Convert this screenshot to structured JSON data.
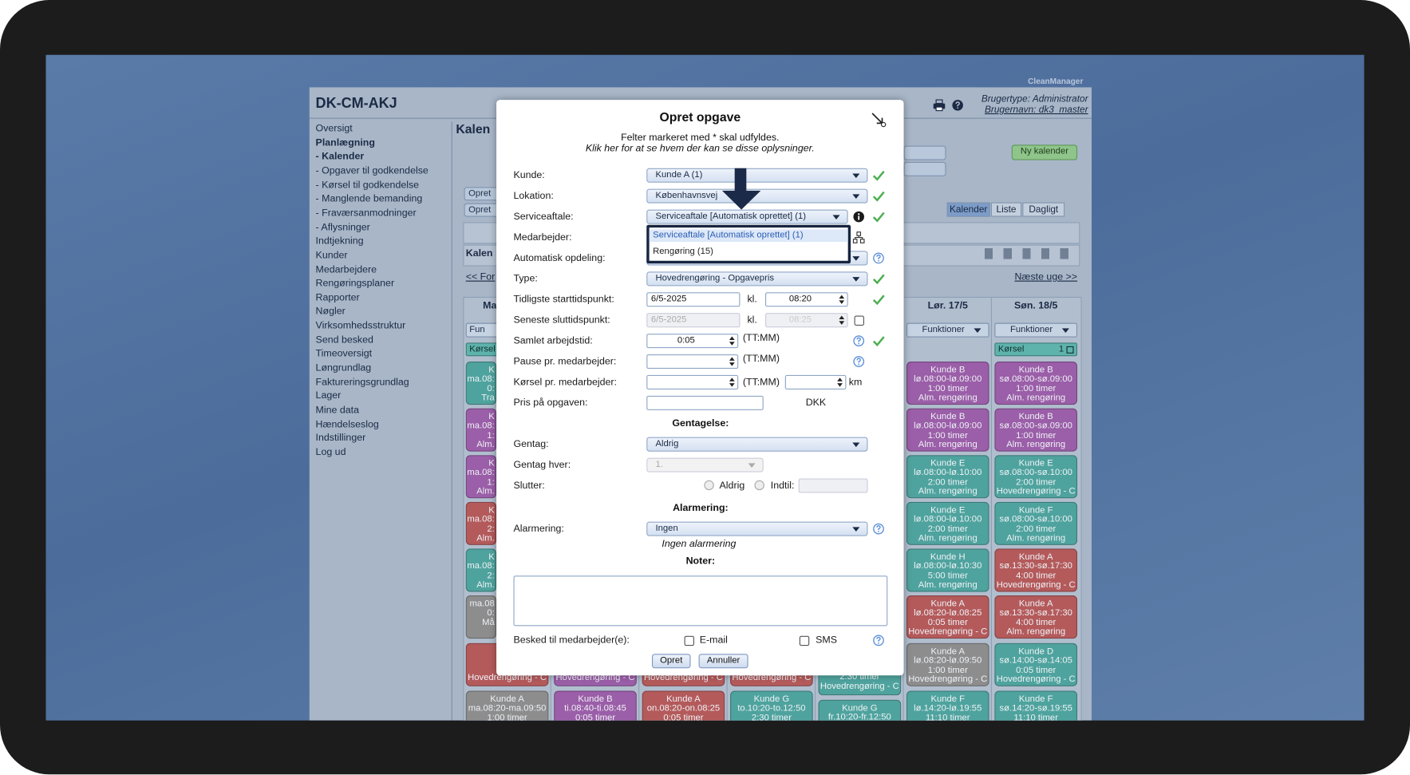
{
  "brand": "CleanManager",
  "app": {
    "title": "DK-CM-AKJ",
    "user_type": "Brugertype: Administrator",
    "user_name": "Brugernavn: dk3_master"
  },
  "menu": [
    {
      "label": "Oversigt"
    },
    {
      "label": "Planlægning",
      "bold": true
    },
    {
      "label": "- Kalender",
      "bold": true
    },
    {
      "label": "- Opgaver til godkendelse"
    },
    {
      "label": "- Kørsel til godkendelse"
    },
    {
      "label": "- Manglende bemanding"
    },
    {
      "label": "- Fraværsanmodninger"
    },
    {
      "label": "- Aflysninger"
    },
    {
      "label": "Indtjekning"
    },
    {
      "label": "Kunder"
    },
    {
      "label": "Medarbejdere"
    },
    {
      "label": "Rengøringsplaner"
    },
    {
      "label": "Rapporter"
    },
    {
      "label": "Nøgler"
    },
    {
      "label": "Virksomhedsstruktur"
    },
    {
      "label": "Send besked"
    },
    {
      "label": "Timeoversigt"
    },
    {
      "label": "Løngrundlag"
    },
    {
      "label": "Faktureringsgrundlag"
    },
    {
      "label": "Lager"
    },
    {
      "label": "Mine data"
    },
    {
      "label": "Hændelseslog"
    },
    {
      "label": "Indstillinger"
    },
    {
      "label": "Log ud"
    }
  ],
  "calendar": {
    "heading": "Kalen",
    "create_buttons": [
      "Opret",
      "Opret"
    ],
    "new_calendar": "Ny kalender",
    "views": [
      {
        "label": "Kalender",
        "active": true
      },
      {
        "label": "Liste"
      },
      {
        "label": "Dagligt"
      }
    ],
    "sub_heading": "Kalen",
    "prev_week": "<< For",
    "next_week": "Næste uge >>",
    "columns": [
      {
        "header": "Ma",
        "functions": "Fun",
        "drive": {
          "label": "Kørsel"
        },
        "cards": [
          {
            "color": "#4fa39e",
            "lines": [
              "K",
              "ma.08:",
              "0:",
              "Tra"
            ]
          },
          {
            "color": "#9b5ea8",
            "lines": [
              "K",
              "ma.08:",
              "1:",
              "Alm."
            ]
          },
          {
            "color": "#9b5ea8",
            "lines": [
              "K",
              "ma.08:",
              "1:",
              "Alm."
            ]
          },
          {
            "color": "#b45a5b",
            "lines": [
              "K",
              "ma.08:",
              "2:",
              "Alm."
            ]
          },
          {
            "color": "#4fa39e",
            "lines": [
              "K",
              "ma.08:",
              "2:",
              "Alm."
            ]
          },
          {
            "color": "#8d8d8d",
            "lines": [
              "ma.08",
              "0:",
              "Må"
            ]
          },
          {
            "color": "#b45a5b",
            "lines": [
              "Hovedrengøring - C"
            ]
          },
          {
            "color": "#8d8d8d",
            "lines": [
              "Kunde A",
              "ma.08:20-ma.09:50",
              "1:00 timer"
            ]
          }
        ]
      },
      {
        "cards": [
          null,
          null,
          null,
          null,
          null,
          null,
          {
            "color": "#9b5ea8",
            "lines": [
              "Hovedrengøring - C"
            ]
          },
          {
            "color": "#9b5ea8",
            "lines": [
              "Kunde B",
              "ti.08:40-ti.08:45",
              "0:05 timer"
            ]
          }
        ]
      },
      {
        "cards": [
          null,
          null,
          null,
          null,
          null,
          null,
          {
            "color": "#b45a5b",
            "lines": [
              "Hovedrengøring - C"
            ]
          },
          {
            "color": "#b45a5b",
            "lines": [
              "Kunde A",
              "on.08:20-on.08:25",
              "0:05 timer"
            ]
          }
        ]
      },
      {
        "cards": [
          null,
          null,
          null,
          null,
          null,
          null,
          {
            "color": "#b45a5b",
            "lines": [
              "Hovedrengøring - C"
            ]
          },
          {
            "color": "#4fa39e",
            "lines": [
              "Kunde G",
              "to.10:20-to.12:50",
              "2:30 timer"
            ]
          }
        ]
      },
      {
        "cards": [
          null,
          null,
          null,
          null,
          null,
          null,
          {
            "color": "#4fa39e",
            "lines": [
              "2:30 timer",
              "Hovedrengøring - C"
            ]
          },
          {
            "color": "#4fa39e",
            "lines": [
              "Kunde G",
              "fr.10:20-fr.12:50"
            ]
          }
        ]
      },
      {
        "header": "Lør. 17/5",
        "functions": "Funktioner",
        "cards": [
          {
            "color": "#9b5ea8",
            "lines": [
              "Kunde B",
              "lø.08:00-lø.09:00",
              "1:00 timer",
              "Alm. rengøring"
            ]
          },
          {
            "color": "#9b5ea8",
            "lines": [
              "Kunde B",
              "lø.08:00-lø.09:00",
              "1:00 timer",
              "Alm. rengøring"
            ]
          },
          {
            "color": "#4fa39e",
            "lines": [
              "Kunde E",
              "lø.08:00-lø.10:00",
              "2:00 timer",
              "Alm. rengøring"
            ]
          },
          {
            "color": "#4fa39e",
            "lines": [
              "Kunde E",
              "lø.08:00-lø.10:00",
              "2:00 timer",
              "Alm. rengøring"
            ]
          },
          {
            "color": "#4fa39e",
            "lines": [
              "Kunde H",
              "lø.08:00-lø.10:30",
              "5:00 timer",
              "Alm. rengøring"
            ]
          },
          {
            "color": "#b45a5b",
            "lines": [
              "Kunde A",
              "lø.08:20-lø.08:25",
              "0:05 timer",
              "Hovedrengøring - C"
            ]
          },
          {
            "color": "#8d8d8d",
            "lines": [
              "Kunde A",
              "lø.08:20-lø.09:50",
              "1:00 timer",
              "Hovedrengøring - C"
            ]
          },
          {
            "color": "#4fa39e",
            "lines": [
              "Kunde F",
              "lø.14:20-lø.19:55",
              "11:10 timer"
            ]
          }
        ]
      },
      {
        "header": "Søn. 18/5",
        "functions": "Funktioner",
        "drive": {
          "label": "Kørsel",
          "count": 1
        },
        "cards": [
          {
            "color": "#9b5ea8",
            "lines": [
              "Kunde B",
              "sø.08:00-sø.09:00",
              "1:00 timer",
              "Alm. rengøring"
            ]
          },
          {
            "color": "#9b5ea8",
            "lines": [
              "Kunde B",
              "sø.08:00-sø.09:00",
              "1:00 timer",
              "Alm. rengøring"
            ]
          },
          {
            "color": "#4fa39e",
            "lines": [
              "Kunde E",
              "sø.08:00-sø.10:00",
              "2:00 timer",
              "Hovedrengøring - C"
            ]
          },
          {
            "color": "#4fa39e",
            "lines": [
              "Kunde F",
              "sø.08:00-sø.10:00",
              "2:00 timer",
              "Alm. rengøring"
            ]
          },
          {
            "color": "#b45a5b",
            "lines": [
              "Kunde A",
              "sø.13:30-sø.17:30",
              "4:00 timer",
              "Hovedrengøring - C"
            ]
          },
          {
            "color": "#b45a5b",
            "lines": [
              "Kunde A",
              "sø.13:30-sø.17:30",
              "4:00 timer",
              "Alm. rengøring"
            ]
          },
          {
            "color": "#4fa39e",
            "lines": [
              "Kunde D",
              "sø.14:00-sø.14:05",
              "0:05 timer",
              "Hovedrengøring - C"
            ]
          },
          {
            "color": "#4fa39e",
            "lines": [
              "Kunde F",
              "sø.14:20-sø.19:55",
              "11:10 timer"
            ]
          }
        ]
      }
    ]
  },
  "modal": {
    "title": "Opret opgave",
    "note": "Felter markeret med * skal udfyldes.",
    "info_link": "Klik her for at se hvem der kan se disse oplysninger.",
    "fields": {
      "customer": {
        "label": "Kunde:",
        "value": "Kunde A (1)",
        "valid": true
      },
      "location": {
        "label": "Lokation:",
        "value": "Københavnsvej",
        "valid": true
      },
      "agreement": {
        "label": "Serviceaftale:",
        "value": "Serviceaftale [Automatisk oprettet] (1)",
        "valid": true,
        "options": [
          "Serviceaftale [Automatisk oprettet] (1)",
          "Rengøring (15)"
        ]
      },
      "employee": {
        "label": "Medarbejder:"
      },
      "auto_split": {
        "label": "Automatisk opdeling:"
      },
      "type": {
        "label": "Type:",
        "value": "Hovedrengøring - Opgavepris",
        "valid": true
      },
      "earliest_start": {
        "label": "Tidligste starttidspunkt:",
        "date": "6/5-2025",
        "at": "kl.",
        "time": "08:20",
        "valid": true
      },
      "latest_end": {
        "label": "Seneste sluttidspunkt:",
        "date": "6/5-2025",
        "at": "kl.",
        "time": "08:25"
      },
      "total_time": {
        "label": "Samlet arbejdstid:",
        "value": "0:05",
        "unit": "(TT:MM)",
        "valid": true
      },
      "break": {
        "label": "Pause pr. medarbejder:",
        "unit": "(TT:MM)"
      },
      "driving": {
        "label": "Kørsel pr. medarbejder:",
        "unit": "(TT:MM)",
        "distance_unit": "km"
      },
      "price": {
        "label": "Pris på opgaven:",
        "currency": "DKK"
      }
    },
    "repeat": {
      "heading": "Gentagelse:",
      "repeat": {
        "label": "Gentag:",
        "value": "Aldrig"
      },
      "every": {
        "label": "Gentag hver:",
        "value": "1."
      },
      "ends": {
        "label": "Slutter:",
        "never": "Aldrig",
        "until": "Indtil:"
      }
    },
    "alarm": {
      "heading": "Alarmering:",
      "label": "Alarmering:",
      "value": "Ingen",
      "description": "Ingen alarmering"
    },
    "notes": {
      "heading": "Noter:"
    },
    "notify": {
      "label": "Besked til medarbejder(e):",
      "email": "E-mail",
      "sms": "SMS"
    },
    "buttons": {
      "create": "Opret",
      "cancel": "Annuller"
    }
  }
}
